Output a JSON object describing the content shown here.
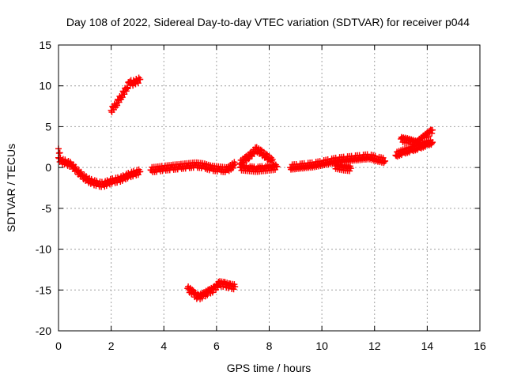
{
  "chart_data": {
    "type": "scatter",
    "title": "Day 108 of 2022, Sidereal Day-to-day VTEC variation (SDTVAR) for receiver p044",
    "xlabel": "GPS time / hours",
    "ylabel": "SDTVAR / TECUs",
    "xlim": [
      0,
      16
    ],
    "ylim": [
      -20,
      15
    ],
    "xticks": [
      0,
      2,
      4,
      6,
      8,
      10,
      12,
      14,
      16
    ],
    "yticks": [
      -20,
      -15,
      -10,
      -5,
      0,
      5,
      10,
      15
    ],
    "grid": true,
    "legend": "none",
    "marker": "plus",
    "color": "#ff0000",
    "segments": [
      {
        "x": [
          0.0,
          0.1,
          0.3,
          0.5,
          0.7,
          0.9,
          1.1,
          1.3,
          1.5,
          1.7,
          1.9,
          2.1,
          2.3,
          2.5,
          2.7,
          2.9,
          3.1
        ],
        "y": [
          1.2,
          0.8,
          0.6,
          0.3,
          -0.4,
          -1.0,
          -1.5,
          -1.8,
          -2.0,
          -2.1,
          -1.8,
          -1.6,
          -1.5,
          -1.2,
          -0.9,
          -0.7,
          -0.5
        ]
      },
      {
        "x": [
          0.0,
          0.05
        ],
        "y": [
          2.3,
          1.8
        ]
      },
      {
        "x": [
          2.0,
          2.2,
          2.4,
          2.6,
          2.7,
          2.8,
          2.9,
          3.0,
          3.1
        ],
        "y": [
          7.0,
          7.8,
          8.8,
          9.8,
          10.5,
          10.3,
          10.5,
          10.6,
          10.8
        ]
      },
      {
        "x": [
          3.5,
          3.8,
          4.0,
          4.3,
          4.6,
          4.9,
          5.2,
          5.5,
          5.8,
          6.1,
          6.4,
          6.7
        ],
        "y": [
          -0.3,
          -0.2,
          -0.1,
          0.0,
          0.1,
          0.2,
          0.3,
          0.2,
          -0.1,
          -0.2,
          -0.3,
          0.4
        ]
      },
      {
        "x": [
          4.9,
          5.1,
          5.3,
          5.5,
          5.7,
          5.9,
          6.1,
          6.3,
          6.5,
          6.7
        ],
        "y": [
          -14.8,
          -15.3,
          -15.9,
          -15.6,
          -15.2,
          -14.9,
          -14.2,
          -14.3,
          -14.5,
          -14.6
        ]
      },
      {
        "x": [
          6.9,
          7.1,
          7.3,
          7.5,
          7.7,
          7.9,
          8.1,
          8.2
        ],
        "y": [
          0.5,
          1.0,
          1.5,
          2.2,
          1.8,
          1.3,
          0.8,
          0.2
        ]
      },
      {
        "x": [
          6.9,
          7.2,
          7.5,
          7.8,
          8.1,
          8.3
        ],
        "y": [
          0.0,
          -0.1,
          -0.2,
          -0.1,
          0.0,
          0.1
        ]
      },
      {
        "x": [
          8.8,
          9.1,
          9.4,
          9.7,
          10.0,
          10.3,
          10.6,
          10.9,
          11.2,
          11.5,
          11.8,
          12.1,
          12.4
        ],
        "y": [
          0.0,
          0.1,
          0.2,
          0.3,
          0.5,
          0.7,
          0.9,
          1.0,
          1.1,
          1.2,
          1.3,
          1.0,
          0.8
        ]
      },
      {
        "x": [
          10.5,
          10.8,
          11.1
        ],
        "y": [
          0.2,
          0.0,
          -0.1
        ]
      },
      {
        "x": [
          12.8,
          13.1,
          13.4,
          13.7,
          14.0,
          14.2
        ],
        "y": [
          1.5,
          1.9,
          2.2,
          2.5,
          2.9,
          3.1
        ]
      },
      {
        "x": [
          13.0,
          13.3,
          13.6,
          13.9,
          14.1,
          14.2
        ],
        "y": [
          3.5,
          3.3,
          3.0,
          3.8,
          4.3,
          4.6
        ]
      }
    ]
  }
}
